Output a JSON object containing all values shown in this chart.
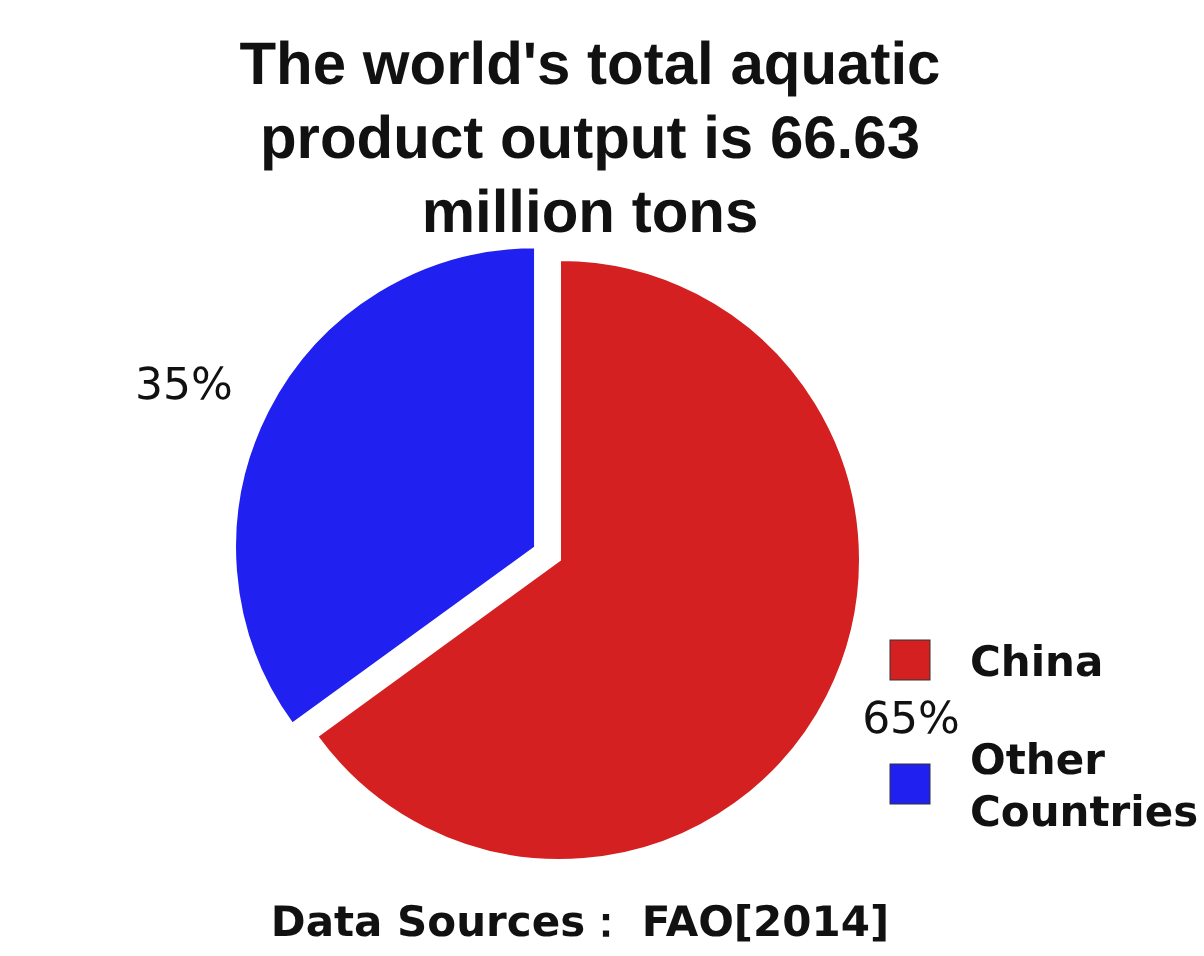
{
  "chart_data": {
    "type": "pie",
    "title": "The world's total aquatic product output is 66.63 million tons",
    "categories": [
      "China",
      "Other Countries"
    ],
    "values": [
      65,
      35
    ],
    "colors": [
      "#d42020",
      "#2020f0"
    ],
    "value_labels": [
      "65%",
      "35%"
    ],
    "legend": "bottom right",
    "annotations": [
      "Data Sources： FAO[2014]"
    ]
  }
}
